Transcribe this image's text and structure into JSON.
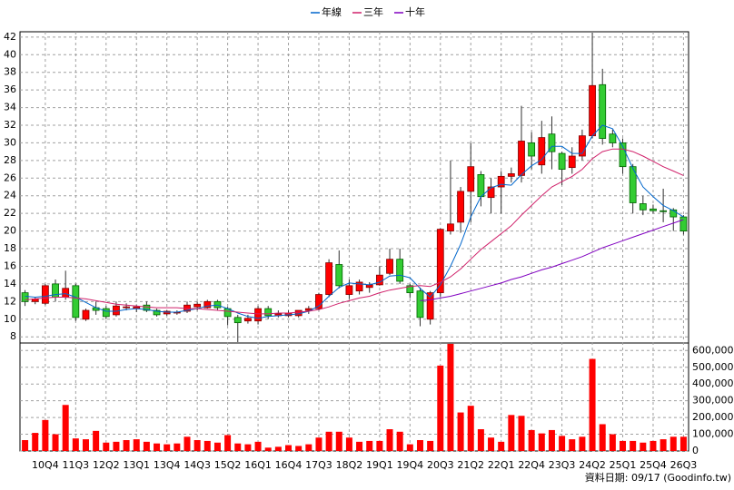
{
  "chart_data": {
    "type": "candlestick",
    "categories": [
      null,
      null,
      "10Q4",
      null,
      null,
      "11Q3",
      null,
      null,
      "12Q2",
      null,
      null,
      "13Q1",
      null,
      null,
      "13Q4",
      null,
      null,
      "14Q3",
      null,
      null,
      "15Q2",
      null,
      null,
      "16Q1",
      null,
      null,
      "16Q4",
      null,
      null,
      "17Q3",
      null,
      null,
      "18Q2",
      null,
      null,
      "19Q1",
      null,
      null,
      "19Q4",
      null,
      null,
      "20Q3",
      null,
      null,
      "21Q2",
      null,
      null,
      "22Q1",
      null,
      null,
      "22Q4",
      null,
      null,
      "23Q3",
      null,
      null,
      "24Q2",
      null,
      null,
      "25Q1",
      null,
      null,
      "25Q4",
      null,
      null,
      "26Q3"
    ],
    "open": [
      13,
      12,
      11.8,
      14,
      12.5,
      13.8,
      10,
      11.3,
      11.2,
      10.5,
      11.3,
      11.2,
      11.6,
      11,
      10.6,
      10.7,
      10.9,
      11.4,
      11.3,
      12,
      11.2,
      10.2,
      9.8,
      9.8,
      11.2,
      10.4,
      10.4,
      10.4,
      11,
      11.2,
      12.8,
      16.2,
      12.8,
      13.2,
      13.6,
      13.9,
      15.2,
      16.8,
      13.8,
      13.2,
      10,
      13,
      20,
      21,
      24.5,
      26.4,
      23.8,
      25,
      26.2,
      26.3,
      30,
      27.5,
      31,
      28.8,
      27.2,
      28.5,
      30.8,
      36.6,
      31,
      30,
      27.3,
      23.1,
      22.5,
      22.3,
      22.4,
      21.6
    ],
    "high": [
      13.3,
      12.5,
      14,
      14.5,
      15.5,
      14,
      11.2,
      12,
      11.5,
      12,
      11.8,
      11.6,
      12,
      11.2,
      11,
      11,
      12,
      12,
      12.2,
      12.2,
      11.4,
      10.5,
      10.5,
      11.5,
      11.5,
      11,
      11,
      11,
      11.5,
      13,
      16.8,
      17.8,
      14.5,
      14.5,
      14.2,
      16,
      18,
      18,
      14,
      13.6,
      13.2,
      20.3,
      28,
      25,
      30,
      26.8,
      26,
      26.8,
      27.2,
      34.2,
      31.2,
      32.5,
      33,
      29,
      29.5,
      31.5,
      42.5,
      38.4,
      31.5,
      30.5,
      27.6,
      24,
      23,
      24.8,
      22.6,
      21.8
    ],
    "low": [
      11.5,
      11.7,
      11.6,
      12,
      12.2,
      9.8,
      9.8,
      10.5,
      10,
      10.3,
      11,
      10.8,
      10.8,
      10.3,
      10.4,
      10.5,
      10.7,
      11,
      11.2,
      11,
      9.3,
      7.4,
      9.5,
      9.4,
      10,
      10.2,
      10.2,
      10.2,
      10.6,
      11,
      12.5,
      13.5,
      12.3,
      12.8,
      13,
      13.8,
      15,
      14,
      12.4,
      9.2,
      9.4,
      12.5,
      19.6,
      19.8,
      21,
      22.8,
      22,
      22,
      25.5,
      25.5,
      27,
      26.5,
      27,
      25.2,
      26.5,
      28,
      30.5,
      29.8,
      29.5,
      26.5,
      22,
      21.8,
      22,
      21,
      20,
      19.6
    ],
    "close": [
      12,
      12.3,
      13.8,
      12.5,
      13.5,
      10.2,
      11,
      11,
      10.3,
      11.5,
      11.4,
      11.4,
      11,
      10.5,
      10.9,
      10.8,
      11.6,
      11.7,
      12,
      11.3,
      10.3,
      9.6,
      10.1,
      11.2,
      10.4,
      10.6,
      10.7,
      11,
      11.2,
      12.8,
      16.4,
      13.8,
      13.8,
      14.2,
      13.9,
      15,
      16.8,
      14.3,
      13,
      10.2,
      13,
      20.2,
      20.8,
      24.5,
      27.3,
      23.9,
      25,
      26.2,
      26.5,
      30.2,
      28.5,
      30.6,
      29,
      27,
      28.5,
      30.8,
      36.5,
      30.5,
      30,
      27.3,
      23.2,
      22.4,
      22.3,
      22.2,
      21.6,
      20
    ],
    "up_color": "#ff0000",
    "down_color": "#33cc33",
    "ylim": [
      7.3,
      42.6
    ],
    "yticks": [
      8,
      10,
      12,
      14,
      16,
      18,
      20,
      22,
      24,
      26,
      28,
      30,
      32,
      34,
      36,
      38,
      40,
      42
    ],
    "grid": true,
    "legend": "top",
    "series": [
      {
        "name": "年線",
        "color": "#0066cc",
        "values": [
          12.6,
          12.5,
          12.6,
          12.8,
          12.9,
          12.5,
          11.9,
          11.3,
          10.9,
          10.9,
          11.1,
          11.2,
          11.1,
          10.9,
          10.8,
          10.8,
          11.0,
          11.2,
          11.5,
          11.6,
          11.2,
          10.7,
          10.3,
          10.1,
          10.3,
          10.4,
          10.5,
          10.6,
          10.9,
          11.5,
          12.6,
          13.6,
          14.1,
          14.0,
          13.9,
          14.2,
          14.9,
          15.0,
          14.7,
          13.5,
          12.5,
          13.9,
          16.0,
          18.5,
          21.6,
          23.9,
          24.9,
          25.3,
          25.2,
          26.4,
          27.4,
          28.1,
          29.6,
          29.6,
          28.8,
          28.8,
          30.8,
          32.0,
          31.6,
          29.6,
          27.1,
          25.0,
          23.9,
          22.9,
          22.3,
          21.6
        ]
      },
      {
        "name": "三年",
        "color": "#d0206a",
        "values": [
          12.2,
          12.3,
          12.4,
          12.5,
          12.5,
          12.4,
          12.3,
          12.1,
          11.9,
          11.7,
          11.6,
          11.5,
          11.4,
          11.3,
          11.3,
          11.3,
          11.2,
          11.2,
          11.1,
          11.0,
          10.9,
          10.8,
          10.7,
          10.6,
          10.6,
          10.7,
          10.7,
          10.8,
          10.9,
          11.1,
          11.4,
          11.8,
          12.1,
          12.4,
          12.6,
          13.0,
          13.3,
          13.5,
          13.7,
          13.8,
          13.7,
          14.2,
          14.8,
          15.7,
          16.8,
          17.9,
          18.8,
          19.7,
          20.6,
          21.8,
          22.9,
          24.0,
          25.0,
          25.6,
          26.2,
          27.0,
          28.2,
          29.0,
          29.3,
          29.3,
          29.0,
          28.5,
          27.9,
          27.3,
          26.8,
          26.3
        ]
      },
      {
        "name": "十年",
        "color": "#8000c0",
        "values": [
          null,
          null,
          null,
          null,
          null,
          null,
          null,
          null,
          null,
          null,
          null,
          null,
          null,
          null,
          null,
          null,
          null,
          null,
          null,
          null,
          null,
          null,
          null,
          null,
          null,
          null,
          null,
          null,
          null,
          null,
          null,
          null,
          null,
          null,
          null,
          null,
          null,
          null,
          null,
          12.1,
          12.2,
          12.4,
          12.6,
          12.9,
          13.2,
          13.5,
          13.8,
          14.1,
          14.5,
          14.8,
          15.2,
          15.6,
          15.9,
          16.3,
          16.7,
          17.1,
          17.6,
          18.1,
          18.5,
          18.9,
          19.3,
          19.7,
          20.1,
          20.5,
          20.9,
          21.3
        ]
      }
    ],
    "volume": {
      "color": "#ff0000",
      "values": [
        65000,
        108000,
        185000,
        100000,
        275000,
        75000,
        70000,
        120000,
        50000,
        55000,
        65000,
        70000,
        55000,
        45000,
        40000,
        45000,
        85000,
        65000,
        60000,
        50000,
        95000,
        45000,
        40000,
        55000,
        20000,
        25000,
        35000,
        30000,
        40000,
        80000,
        115000,
        115000,
        80000,
        55000,
        60000,
        60000,
        130000,
        115000,
        40000,
        65000,
        60000,
        510000,
        640000,
        230000,
        270000,
        130000,
        80000,
        55000,
        215000,
        210000,
        125000,
        105000,
        125000,
        90000,
        70000,
        85000,
        550000,
        160000,
        100000,
        60000,
        60000,
        50000,
        60000,
        70000,
        85000,
        85000
      ],
      "ylim": [
        0,
        645000
      ],
      "yticks": [
        0,
        {
          "value": 100000,
          "label": "100,000"
        },
        {
          "value": 200000,
          "label": "200,000"
        },
        {
          "value": 300000,
          "label": "300,000"
        },
        {
          "value": 400000,
          "label": "400,000"
        },
        {
          "value": 500000,
          "label": "500,000"
        },
        {
          "value": 600000,
          "label": "600,000"
        }
      ]
    },
    "source": "資料日期: 09/17  (Goodinfo.tw)"
  }
}
